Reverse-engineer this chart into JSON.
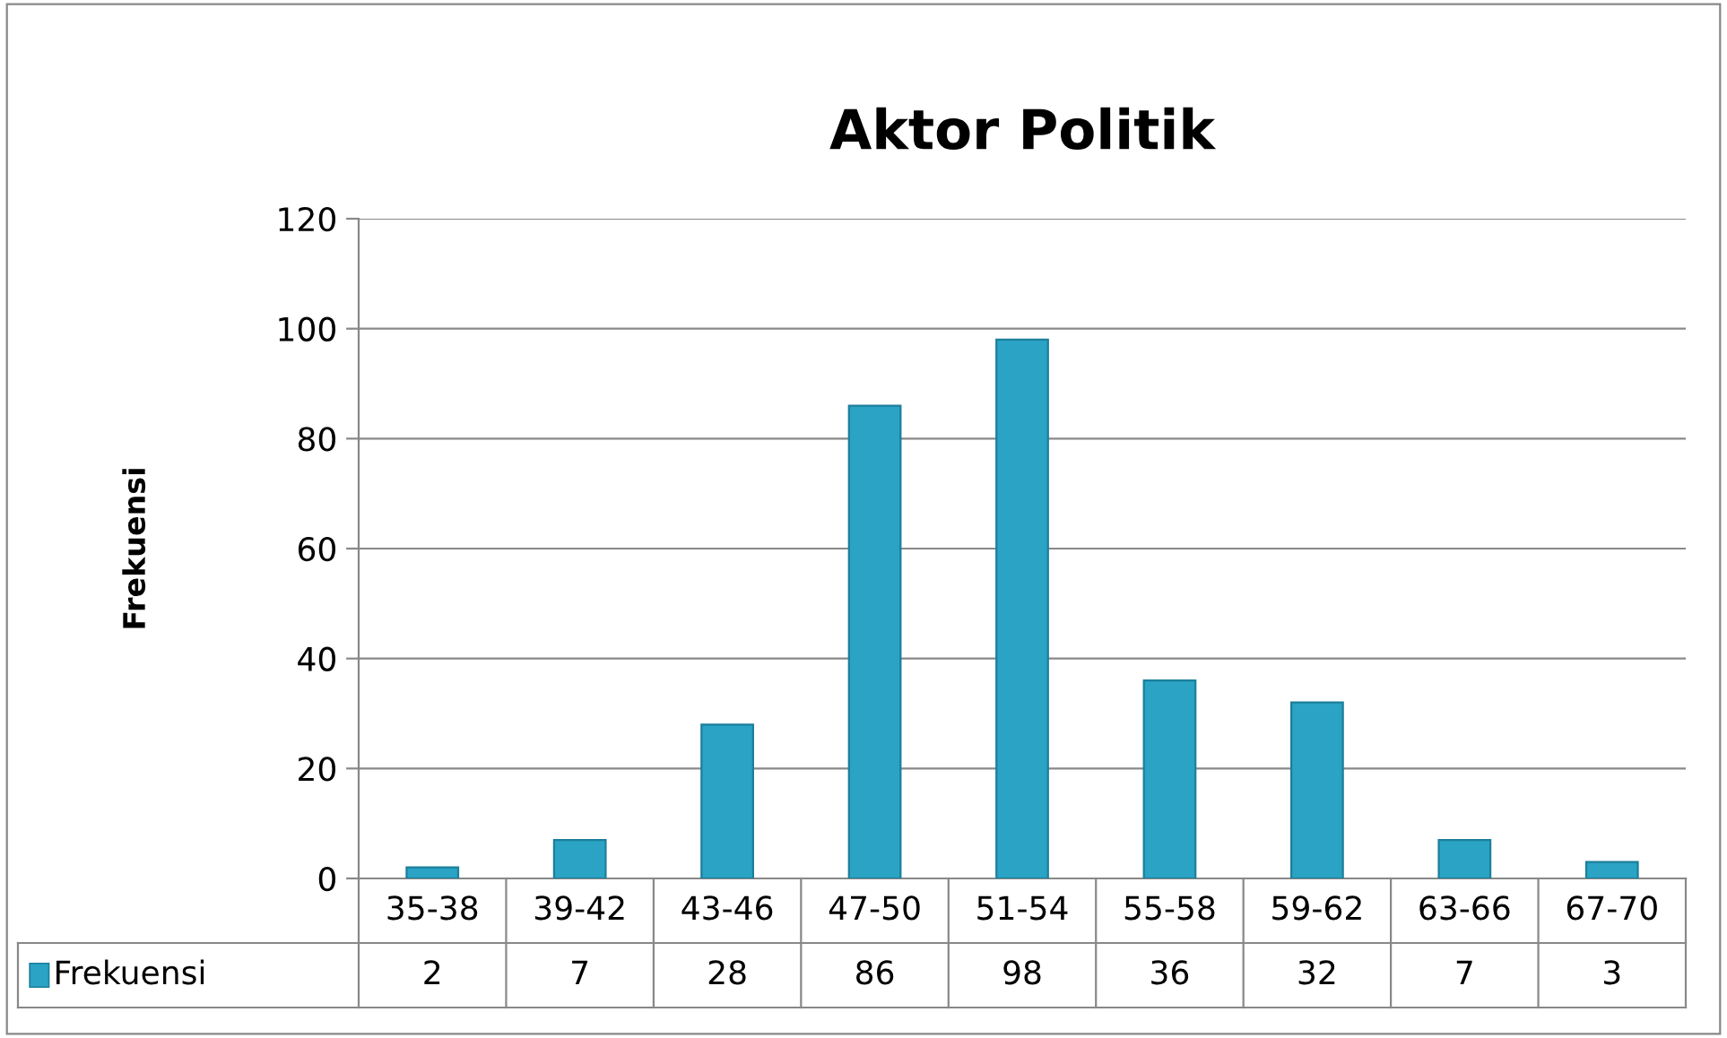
{
  "chart_data": {
    "type": "bar",
    "title": "Aktor Politik",
    "ylabel": "Frekuensi",
    "categories": [
      "35-38",
      "39-42",
      "43-46",
      "47-50",
      "51-54",
      "55-58",
      "59-62",
      "63-66",
      "67-70"
    ],
    "series": [
      {
        "name": "Frekuensi",
        "color": "#2aa3c4",
        "values": [
          2,
          7,
          28,
          86,
          98,
          36,
          32,
          7,
          3
        ]
      }
    ],
    "ylim": [
      0,
      120
    ],
    "yticks": [
      0,
      20,
      40,
      60,
      80,
      100,
      120
    ],
    "grid": "y",
    "legend": "bottom",
    "data_labels": true
  }
}
